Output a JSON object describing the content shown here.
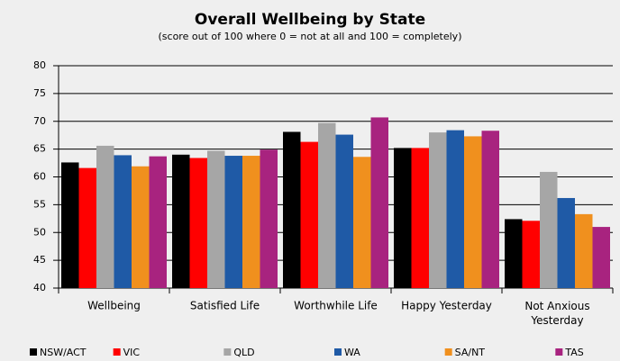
{
  "chart_data": {
    "type": "bar",
    "title": "Overall Wellbeing by State",
    "subtitle": "(score out of 100 where 0 = not at all and 100 = completely)",
    "categories": [
      "Wellbeing",
      "Satisfied Life",
      "Worthwhile Life",
      "Happy Yesterday",
      "Not Anxious Yesterday"
    ],
    "series": [
      {
        "name": "NSW/ACT",
        "color": "#000000",
        "values": [
          62.6,
          64.0,
          68.1,
          65.2,
          52.4
        ]
      },
      {
        "name": "VIC",
        "color": "#ff0000",
        "values": [
          61.6,
          63.4,
          66.3,
          65.2,
          52.1
        ]
      },
      {
        "name": "QLD",
        "color": "#a6a6a6",
        "values": [
          65.6,
          64.7,
          69.7,
          68.0,
          60.9
        ]
      },
      {
        "name": "WA",
        "color": "#1f5aa6",
        "values": [
          63.9,
          63.8,
          67.6,
          68.4,
          56.2
        ]
      },
      {
        "name": "SA/NT",
        "color": "#f0901e",
        "values": [
          61.9,
          63.8,
          63.6,
          67.3,
          53.3
        ]
      },
      {
        "name": "TAS",
        "color": "#a8237f",
        "values": [
          63.7,
          64.9,
          70.7,
          68.3,
          51.0
        ]
      }
    ],
    "ylim": [
      40,
      80
    ],
    "yticks": [
      40,
      45,
      50,
      55,
      60,
      65,
      70,
      75,
      80
    ],
    "grid": true,
    "legend": "bottom"
  }
}
